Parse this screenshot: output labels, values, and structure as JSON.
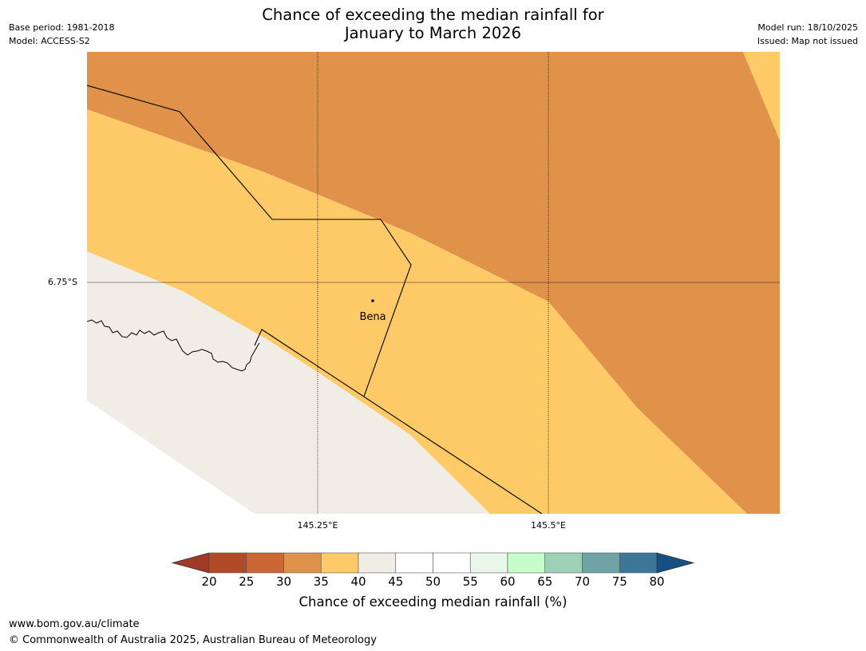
{
  "title_line1": "Chance of exceeding the median rainfall for",
  "title_line2": "January to March 2026",
  "base_period": "Base period: 1981-2018",
  "model": "Model: ACCESS-S2",
  "model_run": "Model run: 18/10/2025",
  "issued": "Issued: Map not issued",
  "map": {
    "place_name": "Bena",
    "lat_labels": [
      "6.75°S"
    ],
    "lon_labels": [
      "145.25°E",
      "145.5°E"
    ]
  },
  "legend": {
    "label": "Chance of exceeding median rainfall (%)",
    "ticks": [
      "20",
      "25",
      "30",
      "35",
      "40",
      "45",
      "50",
      "55",
      "60",
      "65",
      "70",
      "75",
      "80"
    ],
    "colors": [
      "#9e3a26",
      "#b04a27",
      "#cc6634",
      "#e0924a",
      "#fdca67",
      "#f0ece6",
      "#ffffff",
      "#ffffff",
      "#eaf6ea",
      "#c9fccb",
      "#9dd0b6",
      "#6fa3a6",
      "#3e7697",
      "#165082"
    ]
  },
  "footer_url": "www.bom.gov.au/climate",
  "footer_copyright": "© Commonwealth of Australia 2025, Australian Bureau of Meteorology"
}
